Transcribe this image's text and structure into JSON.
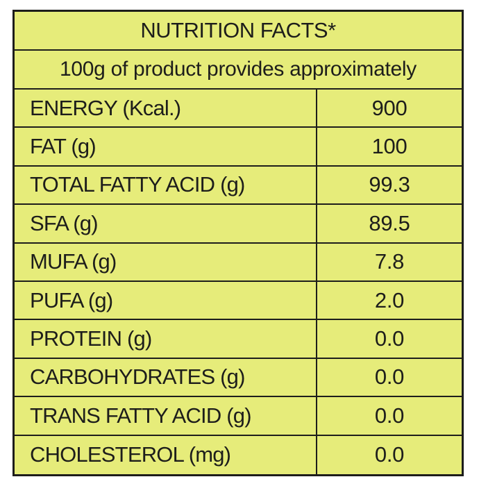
{
  "panel": {
    "title": "NUTRITION FACTS*",
    "subtitle": "100g of product provides approximately"
  },
  "rows": [
    {
      "label": "ENERGY (Kcal.)",
      "value": "900"
    },
    {
      "label": "FAT (g)",
      "value": "100"
    },
    {
      "label": "TOTAL FATTY ACID (g)",
      "value": "99.3"
    },
    {
      "label": "SFA (g)",
      "value": "89.5"
    },
    {
      "label": "MUFA (g)",
      "value": "7.8"
    },
    {
      "label": "PUFA (g)",
      "value": "2.0"
    },
    {
      "label": "PROTEIN (g)",
      "value": "0.0"
    },
    {
      "label": "CARBOHYDRATES (g)",
      "value": "0.0"
    },
    {
      "label": "TRANS FATTY ACID (g)",
      "value": "0.0"
    },
    {
      "label": "CHOLESTEROL (mg)",
      "value": "0.0"
    }
  ],
  "colors": {
    "background": "#e6ec7a",
    "border": "#1d1d1b",
    "text": "#1d1d1b"
  }
}
